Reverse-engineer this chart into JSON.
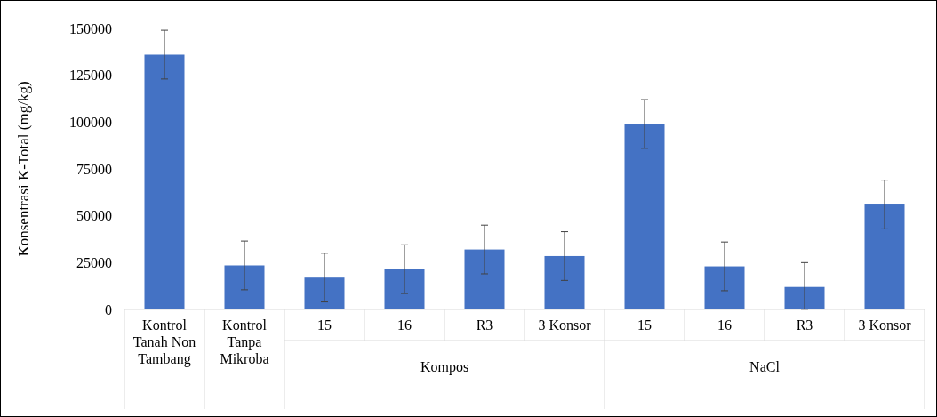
{
  "chart_data": {
    "type": "bar",
    "ylabel": "Konsentrasi K-Total (mg/kg)",
    "categories": [
      "Kontrol Tanah Non Tambang",
      "Kontrol Tanpa Mikroba",
      "15",
      "16",
      "R3",
      "3 Konsor",
      "15",
      "16",
      "R3",
      "3 Konsor"
    ],
    "values": [
      136000,
      23500,
      17000,
      21500,
      32000,
      28500,
      99000,
      23000,
      12000,
      56000
    ],
    "errors": [
      [
        123000,
        149000
      ],
      [
        10500,
        36500
      ],
      [
        4000,
        30000
      ],
      [
        8500,
        34500
      ],
      [
        19000,
        45000
      ],
      [
        15500,
        41500
      ],
      [
        86000,
        112000
      ],
      [
        10000,
        36000
      ],
      [
        0,
        25000
      ],
      [
        43000,
        69000
      ]
    ],
    "color": "#4472c4",
    "ylim": [
      0,
      150000
    ],
    "yticks": [
      0,
      25000,
      50000,
      75000,
      100000,
      125000,
      150000
    ],
    "grid": false,
    "annotations": [
      "Kompos",
      "NaCl"
    ]
  }
}
